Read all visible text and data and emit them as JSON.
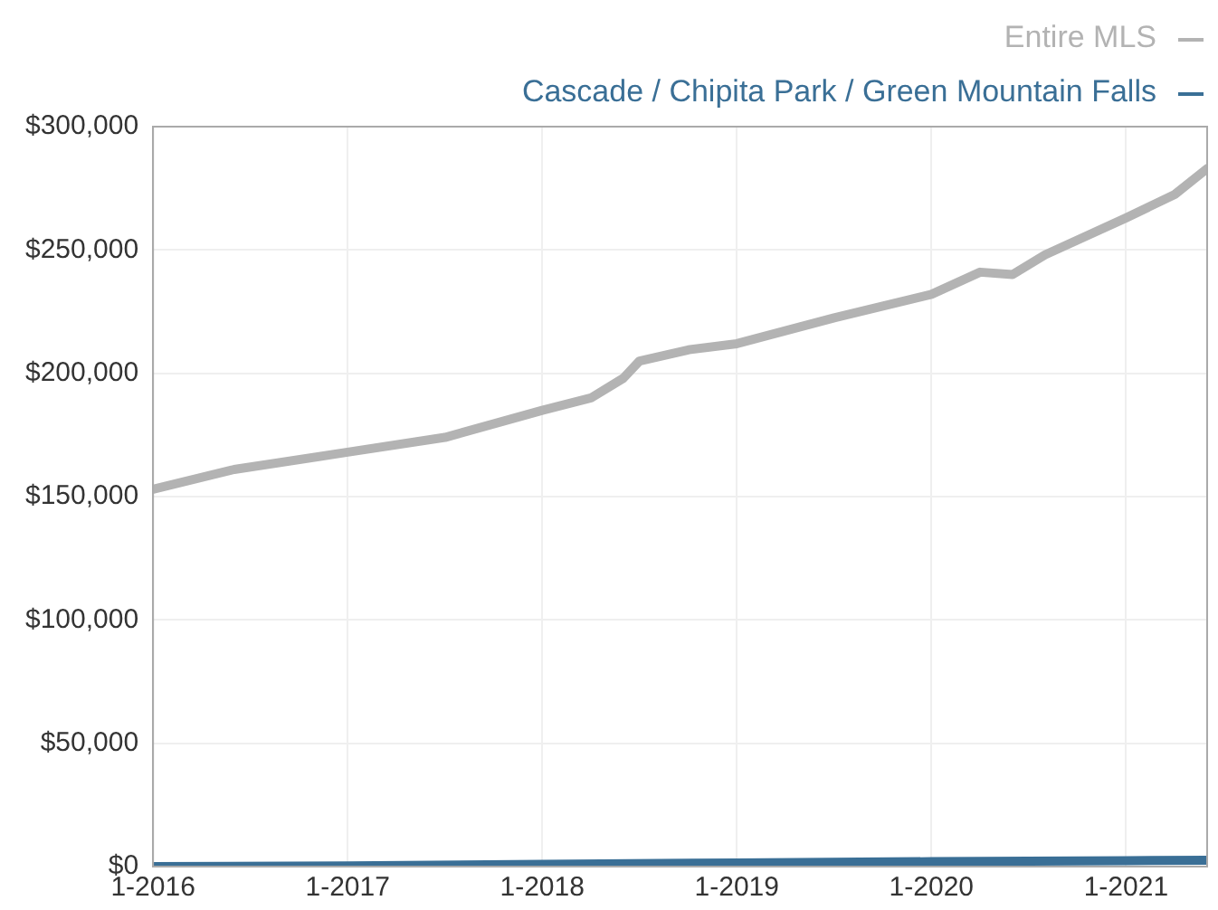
{
  "chart_data": {
    "type": "line",
    "legend": "top right",
    "grid": true,
    "marker": "none",
    "line_style": "solid",
    "xlim": [
      "2016-01",
      "2021-06"
    ],
    "xticks": [
      {
        "value": "2016-01",
        "label": "1-2016"
      },
      {
        "value": "2017-01",
        "label": "1-2017"
      },
      {
        "value": "2018-01",
        "label": "1-2018"
      },
      {
        "value": "2019-01",
        "label": "1-2019"
      },
      {
        "value": "2020-01",
        "label": "1-2020"
      },
      {
        "value": "2021-01",
        "label": "1-2021"
      }
    ],
    "ylim": [
      0,
      300000
    ],
    "yticks": [
      {
        "value": 0,
        "label": "$0"
      },
      {
        "value": 50000,
        "label": "$50,000"
      },
      {
        "value": 100000,
        "label": "$100,000"
      },
      {
        "value": 150000,
        "label": "$150,000"
      },
      {
        "value": 200000,
        "label": "$200,000"
      },
      {
        "value": 250000,
        "label": "$250,000"
      },
      {
        "value": 300000,
        "label": "$300,000"
      }
    ],
    "series": [
      {
        "name": "Entire MLS",
        "color": "#b3b3b3",
        "x": [
          "2016-01",
          "2016-06",
          "2017-01",
          "2017-07",
          "2018-01",
          "2018-04",
          "2018-06",
          "2018-07",
          "2018-10",
          "2019-01",
          "2019-07",
          "2020-01",
          "2020-04",
          "2020-06",
          "2020-08",
          "2021-01",
          "2021-04",
          "2021-06"
        ],
        "values": [
          153000,
          161000,
          168000,
          174000,
          185000,
          190000,
          198000,
          205000,
          209500,
          212000,
          222500,
          232000,
          241000,
          240000,
          248000,
          263000,
          272500,
          283000
        ]
      },
      {
        "name": "Cascade / Chipita Park / Green Mountain Falls",
        "color": "#3a6f96",
        "x": [
          "2016-01",
          "2017-01",
          "2018-01",
          "2019-01",
          "2020-01",
          "2021-01",
          "2021-06"
        ],
        "values": [
          0,
          300,
          900,
          1500,
          2000,
          2400,
          2600
        ]
      }
    ]
  }
}
